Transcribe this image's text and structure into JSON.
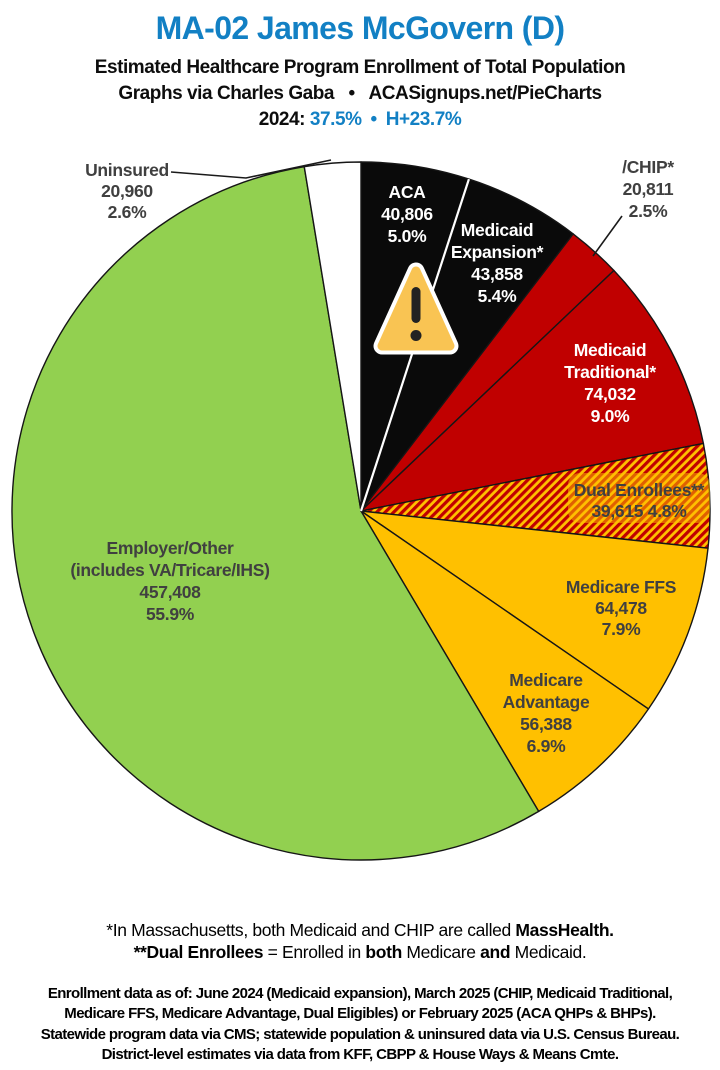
{
  "header": {
    "title": "MA-02 James McGovern (D)",
    "subtitle": "Estimated Healthcare Program Enrollment of Total Population",
    "credit": "Graphs via Charles Gaba   •   ACASignups.net/PieCharts",
    "year_label": "2024:",
    "year_value": "37.5%",
    "bullet": "•",
    "house_margin": "H+23.7%"
  },
  "colors": {
    "title_blue": "#1280C4",
    "black_slice": "#0A0A0A",
    "red_slice": "#C00000",
    "gold_slice": "#FFC000",
    "green_slice": "#92D050",
    "white_slice": "#FFFFFF",
    "label_gray": "#404040",
    "label_white": "#FFFFFF",
    "outline": "#161616",
    "warning_fill": "#F9C453",
    "warning_glyph": "#222222"
  },
  "chart_data": {
    "type": "pie",
    "direction": "clockwise",
    "start_angle_deg": 0,
    "legend_position": "labels-on-slices",
    "slices": [
      {
        "name": "ACA",
        "value": 40806,
        "value_display": "40,806",
        "pct": 5.0,
        "pct_display": "5.0%",
        "color": "#0A0A0A",
        "text_color": "#FFFFFF",
        "lines": [
          "ACA",
          "40,806",
          "5.0%"
        ]
      },
      {
        "name": "Medicaid Expansion*",
        "value": 43858,
        "value_display": "43,858",
        "pct": 5.4,
        "pct_display": "5.4%",
        "color": "#0A0A0A",
        "text_color": "#FFFFFF",
        "lines": [
          "Medicaid",
          "Expansion*",
          "43,858",
          "5.4%"
        ]
      },
      {
        "name": "/CHIP*",
        "value": 20811,
        "value_display": "20,811",
        "pct": 2.5,
        "pct_display": "2.5%",
        "color": "#C00000",
        "text_color": "#404040",
        "label_outside": true,
        "lines": [
          "/CHIP*",
          "20,811",
          "2.5%"
        ]
      },
      {
        "name": "Medicaid Traditional*",
        "value": 74032,
        "value_display": "74,032",
        "pct": 9.0,
        "pct_display": "9.0%",
        "color": "#C00000",
        "text_color": "#FFFFFF",
        "lines": [
          "Medicaid",
          "Traditional*",
          "74,032",
          "9.0%"
        ]
      },
      {
        "name": "Dual Enrollees**",
        "value": 39615,
        "value_display": "39,615",
        "pct": 4.8,
        "pct_display": "4.8%",
        "color": "hatch",
        "hatch_colors": [
          "#C00000",
          "#FFC000"
        ],
        "text_color": "#404040",
        "lines": [
          "Dual Enrollees**",
          "39,615 4.8%"
        ]
      },
      {
        "name": "Medicare FFS",
        "value": 64478,
        "value_display": "64,478",
        "pct": 7.9,
        "pct_display": "7.9%",
        "color": "#FFC000",
        "text_color": "#404040",
        "lines": [
          "Medicare FFS",
          "64,478",
          "7.9%"
        ]
      },
      {
        "name": "Medicare Advantage",
        "value": 56388,
        "value_display": "56,388",
        "pct": 6.9,
        "pct_display": "6.9%",
        "color": "#FFC000",
        "text_color": "#404040",
        "lines": [
          "Medicare",
          "Advantage",
          "56,388",
          "6.9%"
        ]
      },
      {
        "name": "Employer/Other (includes VA/Tricare/IHS)",
        "value": 457408,
        "value_display": "457,408",
        "pct": 55.9,
        "pct_display": "55.9%",
        "color": "#92D050",
        "text_color": "#404040",
        "lines": [
          "Employer/Other",
          "(includes VA/Tricare/IHS)",
          "457,408",
          "55.9%"
        ]
      },
      {
        "name": "Uninsured",
        "value": 20960,
        "value_display": "20,960",
        "pct": 2.6,
        "pct_display": "2.6%",
        "color": "#FFFFFF",
        "text_color": "#404040",
        "label_outside": true,
        "lines": [
          "Uninsured",
          "20,960",
          "2.6%"
        ]
      }
    ]
  },
  "notes": [
    {
      "segments": [
        {
          "text": "*In Massachusetts, both Medicaid and CHIP are called ",
          "bold": false
        },
        {
          "text": "MassHealth.",
          "bold": true
        }
      ]
    },
    {
      "segments": [
        {
          "text": "**Dual Enrollees",
          "bold": true
        },
        {
          "text": " = Enrolled in ",
          "bold": false
        },
        {
          "text": "both",
          "bold": true
        },
        {
          "text": " Medicare ",
          "bold": false
        },
        {
          "text": "and",
          "bold": true
        },
        {
          "text": " Medicaid.",
          "bold": false
        }
      ]
    }
  ],
  "fineprint": [
    "Enrollment data as of: June 2024 (Medicaid expansion), March 2025 (CHIP, Medicaid Traditional,",
    "Medicare FFS, Medicare Advantage, Dual Eligibles) or February 2025 (ACA QHPs & BHPs).",
    "Statewide program data via CMS; statewide population & uninsured data via U.S. Census Bureau.",
    "District-level estimates via data from KFF, CBPP & House Ways & Means Cmte."
  ]
}
